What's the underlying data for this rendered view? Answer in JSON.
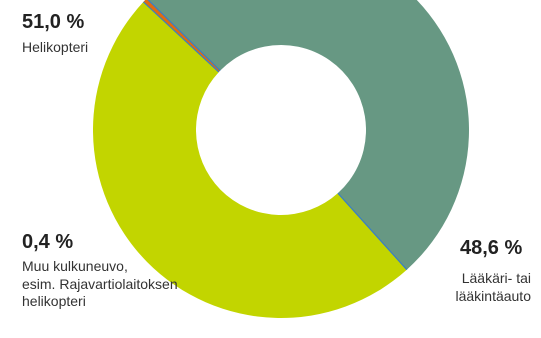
{
  "chart_data": {
    "type": "pie",
    "donut": true,
    "start_angle_deg": 48,
    "series": [
      {
        "name": "Lääkäri- tai\nlääkintäauto",
        "value": 48.6,
        "value_label": "48,6 %",
        "color": "#c2d500"
      },
      {
        "name": "Muu kulkuneuvo,\nesim. Rajavartiolaitoksen\nhelikopteri",
        "value": 0.4,
        "value_label": "0,4 %",
        "color": "#e06b10"
      },
      {
        "name": "Helikopteri",
        "value": 51.0,
        "value_label": "51,0 %",
        "color": "#679883"
      }
    ],
    "separator_color": "#3a7fc4",
    "background": "#ffffff"
  }
}
